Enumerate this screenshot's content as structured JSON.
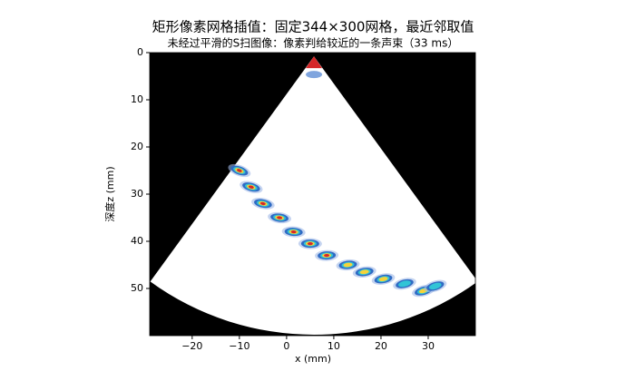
{
  "chart_data": {
    "type": "image",
    "title": "矩形像素网格插值：固定344×300网格，最近邻取值",
    "subtitle": "未经过平滑的S扫图像：像素判给较近的一条声束（33 ms）",
    "x_label": "x (mm)",
    "y_label": "深度z (mm)",
    "xlim": [
      -29,
      40
    ],
    "ylim": [
      60,
      0
    ],
    "y_inverted": true,
    "xticks": [
      {
        "value": -20,
        "label": "−20"
      },
      {
        "value": -10,
        "label": "−10"
      },
      0,
      10,
      20,
      30
    ],
    "yticks": [
      0,
      10,
      20,
      30,
      40,
      50
    ],
    "background": "#000000",
    "sector_color": "#ffffff",
    "sector": {
      "apex_x": 5.8,
      "apex_z": 0.8,
      "radius": 59,
      "half_angle": 36
    },
    "echoes": {
      "x": [
        -10,
        -7.5,
        -5,
        -1.5,
        1.5,
        5,
        8.5,
        13,
        16.5,
        20.5,
        25,
        29,
        31.5
      ],
      "z": [
        25,
        28.5,
        32,
        35,
        38,
        40.5,
        43,
        45,
        46.5,
        48,
        49,
        50.5,
        49.5
      ],
      "intensity": [
        0.8,
        0.85,
        0.85,
        0.8,
        0.85,
        0.9,
        0.8,
        0.7,
        0.75,
        0.7,
        0.6,
        0.7,
        0.6
      ]
    }
  }
}
